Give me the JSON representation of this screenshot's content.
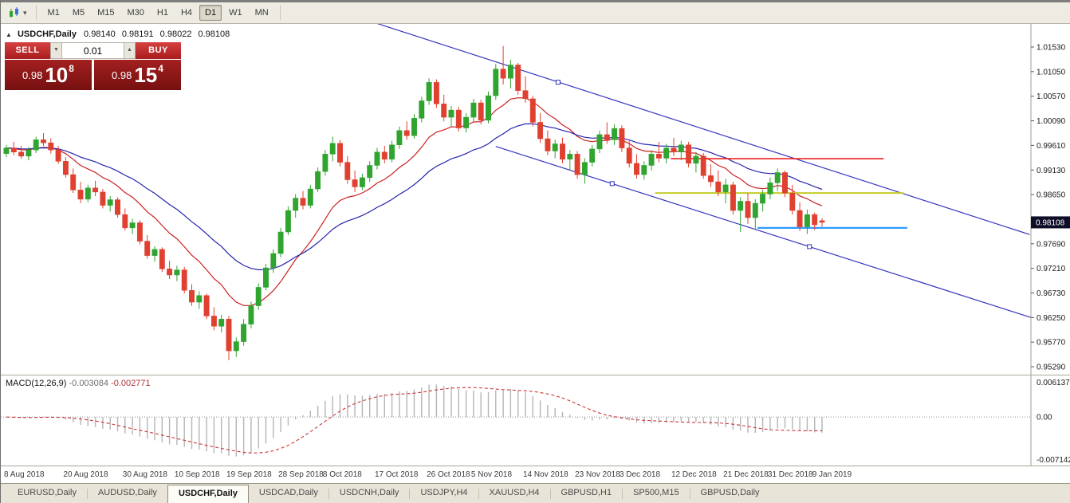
{
  "toolbar": {
    "timeframes": [
      "M1",
      "M5",
      "M15",
      "M30",
      "H1",
      "H4",
      "D1",
      "W1",
      "MN"
    ],
    "active_timeframe": "D1"
  },
  "icons": {
    "dropdown": "▾",
    "spin_up": "▲",
    "spin_down": "▼",
    "collapse": "▲"
  },
  "chart_info": {
    "symbol": "USDCHF,Daily",
    "open": "0.98140",
    "high": "0.98191",
    "low": "0.98022",
    "close": "0.98108"
  },
  "trade_panel": {
    "sell_label": "SELL",
    "buy_label": "BUY",
    "volume": "0.01",
    "sell_price_main": "0.98",
    "sell_price_big": "10",
    "sell_price_sup": "8",
    "buy_price_main": "0.98",
    "buy_price_big": "15",
    "buy_price_sup": "4"
  },
  "price_axis": {
    "labels": [
      "1.01530",
      "1.01050",
      "1.00570",
      "1.00090",
      "0.99610",
      "0.99130",
      "0.98650",
      "0.98170",
      "0.97690",
      "0.97210",
      "0.96730",
      "0.96250",
      "0.95770",
      "0.95290"
    ],
    "current_price": "0.98108",
    "current_price_value": 0.98108
  },
  "macd_panel": {
    "name": "MACD(12,26,9)",
    "value_main": "-0.003084",
    "value_signal": "-0.002771",
    "scale_top": "0.006137",
    "scale_zero": "0.00",
    "scale_bottom": "-0.0071420"
  },
  "tabs": {
    "items": [
      "EURUSD,Daily",
      "AUDUSD,Daily",
      "USDCHF,Daily",
      "USDCAD,Daily",
      "USDCNH,Daily",
      "USDJPY,H4",
      "XAUUSD,H4",
      "GBPUSD,H1",
      "SP500,M15",
      "GBPUSD,Daily"
    ],
    "active_index": 2
  },
  "colors": {
    "candle_up": "#2fa42f",
    "candle_down": "#df4030",
    "ma_fast": "#cc2020",
    "ma_slow": "#2424ae",
    "trendline": "#3535c0",
    "hline_red": "#f02020",
    "hline_yellow": "#c3cc28",
    "hline_blue": "#2f9bff",
    "macd_bar": "#b5b5b5",
    "macd_signal": "#cc3333",
    "axis_line": "#9e9c94",
    "badge_bg": "#0d0d28",
    "badge_text": "#ffffff",
    "axis_text": "#1a1a1a"
  },
  "chart_data": {
    "type": "candlestick",
    "symbol": "USDCHF",
    "timeframe": "Daily",
    "price_range_top_label": 1.0153,
    "price_step": 0.0048,
    "date_labels": [
      {
        "i": 0,
        "label": "8 Aug 2018"
      },
      {
        "i": 8,
        "label": "20 Aug 2018"
      },
      {
        "i": 16,
        "label": "30 Aug 2018"
      },
      {
        "i": 23,
        "label": "10 Sep 2018"
      },
      {
        "i": 30,
        "label": "19 Sep 2018"
      },
      {
        "i": 37,
        "label": "28 Sep 2018"
      },
      {
        "i": 43,
        "label": "8 Oct 2018"
      },
      {
        "i": 50,
        "label": "17 Oct 2018"
      },
      {
        "i": 57,
        "label": "26 Oct 2018"
      },
      {
        "i": 63,
        "label": "5 Nov 2018"
      },
      {
        "i": 70,
        "label": "14 Nov 2018"
      },
      {
        "i": 77,
        "label": "23 Nov 2018"
      },
      {
        "i": 83,
        "label": "3 Dec 2018"
      },
      {
        "i": 90,
        "label": "12 Dec 2018"
      },
      {
        "i": 97,
        "label": "21 Dec 2018"
      },
      {
        "i": 103,
        "label": "31 Dec 2018"
      },
      {
        "i": 109,
        "label": "9 Jan 2019"
      }
    ],
    "candles": [
      [
        0.9945,
        0.9962,
        0.9938,
        0.9956
      ],
      [
        0.9956,
        0.9968,
        0.9942,
        0.9948
      ],
      [
        0.9948,
        0.996,
        0.9935,
        0.994
      ],
      [
        0.994,
        0.9958,
        0.9932,
        0.9952
      ],
      [
        0.9952,
        0.9978,
        0.9946,
        0.9972
      ],
      [
        0.9972,
        0.9985,
        0.996,
        0.9966
      ],
      [
        0.9966,
        0.9975,
        0.9945,
        0.9952
      ],
      [
        0.9952,
        0.996,
        0.9925,
        0.993
      ],
      [
        0.993,
        0.9938,
        0.9898,
        0.9904
      ],
      [
        0.9904,
        0.9916,
        0.9868,
        0.9874
      ],
      [
        0.9874,
        0.989,
        0.9848,
        0.9856
      ],
      [
        0.9856,
        0.9884,
        0.985,
        0.9878
      ],
      [
        0.9878,
        0.9892,
        0.9862,
        0.987
      ],
      [
        0.987,
        0.9876,
        0.9838,
        0.9844
      ],
      [
        0.9844,
        0.9862,
        0.9832,
        0.9855
      ],
      [
        0.9855,
        0.986,
        0.982,
        0.9826
      ],
      [
        0.9826,
        0.9838,
        0.9795,
        0.98
      ],
      [
        0.98,
        0.9818,
        0.9788,
        0.981
      ],
      [
        0.981,
        0.9815,
        0.9768,
        0.9774
      ],
      [
        0.9774,
        0.9786,
        0.974,
        0.9746
      ],
      [
        0.9746,
        0.9764,
        0.9734,
        0.9758
      ],
      [
        0.9758,
        0.9762,
        0.9714,
        0.972
      ],
      [
        0.972,
        0.9736,
        0.97,
        0.9708
      ],
      [
        0.9708,
        0.9726,
        0.9696,
        0.9718
      ],
      [
        0.9718,
        0.9724,
        0.9672,
        0.9678
      ],
      [
        0.9678,
        0.969,
        0.9648,
        0.9655
      ],
      [
        0.9655,
        0.9676,
        0.9642,
        0.9668
      ],
      [
        0.9668,
        0.9672,
        0.9622,
        0.9628
      ],
      [
        0.9628,
        0.9645,
        0.96,
        0.9608
      ],
      [
        0.9608,
        0.963,
        0.9596,
        0.9622
      ],
      [
        0.9622,
        0.9628,
        0.9542,
        0.956
      ],
      [
        0.956,
        0.9586,
        0.9548,
        0.9578
      ],
      [
        0.9578,
        0.9622,
        0.957,
        0.9612
      ],
      [
        0.9612,
        0.9656,
        0.9604,
        0.9648
      ],
      [
        0.9648,
        0.9692,
        0.964,
        0.9684
      ],
      [
        0.9684,
        0.973,
        0.9678,
        0.9722
      ],
      [
        0.9722,
        0.9758,
        0.9712,
        0.975
      ],
      [
        0.975,
        0.98,
        0.9742,
        0.9792
      ],
      [
        0.9792,
        0.9842,
        0.9786,
        0.9834
      ],
      [
        0.9834,
        0.9866,
        0.982,
        0.9858
      ],
      [
        0.9858,
        0.9872,
        0.9836,
        0.9844
      ],
      [
        0.9844,
        0.9884,
        0.9838,
        0.9876
      ],
      [
        0.9876,
        0.9918,
        0.987,
        0.991
      ],
      [
        0.991,
        0.9952,
        0.9902,
        0.9944
      ],
      [
        0.9944,
        0.9978,
        0.993,
        0.9965
      ],
      [
        0.9965,
        0.9972,
        0.992,
        0.9928
      ],
      [
        0.9928,
        0.994,
        0.9886,
        0.9894
      ],
      [
        0.9894,
        0.9912,
        0.987,
        0.988
      ],
      [
        0.988,
        0.9906,
        0.9874,
        0.9898
      ],
      [
        0.9898,
        0.993,
        0.989,
        0.9922
      ],
      [
        0.9922,
        0.9956,
        0.9914,
        0.9948
      ],
      [
        0.9948,
        0.996,
        0.9926,
        0.9934
      ],
      [
        0.9934,
        0.997,
        0.9928,
        0.9962
      ],
      [
        0.9962,
        0.9998,
        0.9954,
        0.999
      ],
      [
        0.999,
        1.0008,
        0.9972,
        0.998
      ],
      [
        0.998,
        1.0022,
        0.9974,
        1.0014
      ],
      [
        1.0014,
        1.0056,
        1.0006,
        1.0048
      ],
      [
        1.0048,
        1.0092,
        1.004,
        1.0084
      ],
      [
        1.0084,
        1.009,
        1.0034,
        1.0042
      ],
      [
        1.0042,
        1.006,
        1.0008,
        1.0016
      ],
      [
        1.0016,
        1.0038,
        0.9998,
        1.003
      ],
      [
        1.003,
        1.0036,
        0.9988,
        0.9995
      ],
      [
        0.9995,
        1.0024,
        0.9986,
        1.0016
      ],
      [
        1.0016,
        1.0052,
        1.0008,
        1.0044
      ],
      [
        1.0044,
        1.005,
        1.0002,
        1.001
      ],
      [
        1.001,
        1.0066,
        1.0004,
        1.0058
      ],
      [
        1.0058,
        1.012,
        1.005,
        1.011
      ],
      [
        1.011,
        1.0155,
        1.008,
        1.0092
      ],
      [
        1.0092,
        1.0128,
        1.0072,
        1.0118
      ],
      [
        1.0118,
        1.0122,
        1.006,
        1.0068
      ],
      [
        1.0068,
        1.0096,
        1.0044,
        1.0052
      ],
      [
        1.0052,
        1.0058,
        0.9998,
        1.0006
      ],
      [
        1.0006,
        1.0024,
        0.9966,
        0.9974
      ],
      [
        0.9974,
        0.999,
        0.9942,
        0.995
      ],
      [
        0.995,
        0.9972,
        0.9936,
        0.9964
      ],
      [
        0.9964,
        0.9976,
        0.9926,
        0.9934
      ],
      [
        0.9934,
        0.9952,
        0.9912,
        0.9944
      ],
      [
        0.9944,
        0.995,
        0.9896,
        0.9904
      ],
      [
        0.9904,
        0.9936,
        0.9886,
        0.9928
      ],
      [
        0.9928,
        0.9962,
        0.992,
        0.9954
      ],
      [
        0.9954,
        0.999,
        0.9946,
        0.9982
      ],
      [
        0.9982,
        1.0006,
        0.9964,
        0.9972
      ],
      [
        0.9972,
        1.0002,
        0.9962,
        0.9994
      ],
      [
        0.9994,
        1.0,
        0.9948,
        0.9956
      ],
      [
        0.9956,
        0.997,
        0.9918,
        0.9926
      ],
      [
        0.9926,
        0.9944,
        0.9896,
        0.9904
      ],
      [
        0.9904,
        0.993,
        0.9894,
        0.9922
      ],
      [
        0.9922,
        0.9952,
        0.9912,
        0.9944
      ],
      [
        0.9944,
        0.9968,
        0.9928,
        0.9936
      ],
      [
        0.9936,
        0.9964,
        0.9926,
        0.9956
      ],
      [
        0.9956,
        0.9976,
        0.994,
        0.9948
      ],
      [
        0.9948,
        0.997,
        0.9932,
        0.9962
      ],
      [
        0.9962,
        0.9968,
        0.9918,
        0.9926
      ],
      [
        0.9926,
        0.9948,
        0.9908,
        0.994
      ],
      [
        0.994,
        0.9946,
        0.9896,
        0.9902
      ],
      [
        0.9902,
        0.9924,
        0.988,
        0.989
      ],
      [
        0.989,
        0.9912,
        0.9862,
        0.987
      ],
      [
        0.987,
        0.9896,
        0.9848,
        0.9884
      ],
      [
        0.9884,
        0.989,
        0.9826,
        0.9834
      ],
      [
        0.9834,
        0.986,
        0.9792,
        0.9852
      ],
      [
        0.9852,
        0.9868,
        0.9808,
        0.982
      ],
      [
        0.982,
        0.9856,
        0.9796,
        0.9848
      ],
      [
        0.9848,
        0.9874,
        0.9832,
        0.9866
      ],
      [
        0.9866,
        0.9898,
        0.9856,
        0.9888
      ],
      [
        0.9888,
        0.9916,
        0.9872,
        0.9908
      ],
      [
        0.9908,
        0.9912,
        0.986,
        0.9868
      ],
      [
        0.9868,
        0.9884,
        0.9826,
        0.9834
      ],
      [
        0.9834,
        0.985,
        0.9794,
        0.9802
      ],
      [
        0.9802,
        0.9836,
        0.9788,
        0.9826
      ],
      [
        0.9826,
        0.983,
        0.9796,
        0.9806
      ],
      [
        0.9814,
        0.98191,
        0.98022,
        0.98108
      ]
    ],
    "moving_averages": [
      {
        "name": "ma-fast",
        "period": 12,
        "color_key": "ma_fast"
      },
      {
        "name": "ma-slow",
        "period": 26,
        "color_key": "ma_slow"
      }
    ],
    "trendlines": [
      {
        "i1": 50,
        "p1": 1.0199,
        "i2": 138,
        "p2": 0.9787
      },
      {
        "i1": 66,
        "p1": 0.9959,
        "i2": 138.2,
        "p2": 0.9625
      }
    ],
    "trendline_markers": [
      {
        "i": 74.4,
        "p": 1.00844
      },
      {
        "i": 81.7,
        "p": 0.98864
      },
      {
        "i": 108.3,
        "p": 0.97634
      }
    ],
    "hlines": [
      {
        "price": 0.9935,
        "i1": 89.6,
        "i2": 118.3,
        "color_key": "hline_red",
        "w": 1.6
      },
      {
        "price": 0.9868,
        "i1": 87.5,
        "i2": 121.0,
        "color_key": "hline_yellow",
        "w": 2
      },
      {
        "price": 0.98,
        "i1": 101.3,
        "i2": 121.5,
        "color_key": "hline_blue",
        "w": 2.2
      }
    ],
    "macd": {
      "fast": 12,
      "slow": 26,
      "signal": 9
    }
  }
}
